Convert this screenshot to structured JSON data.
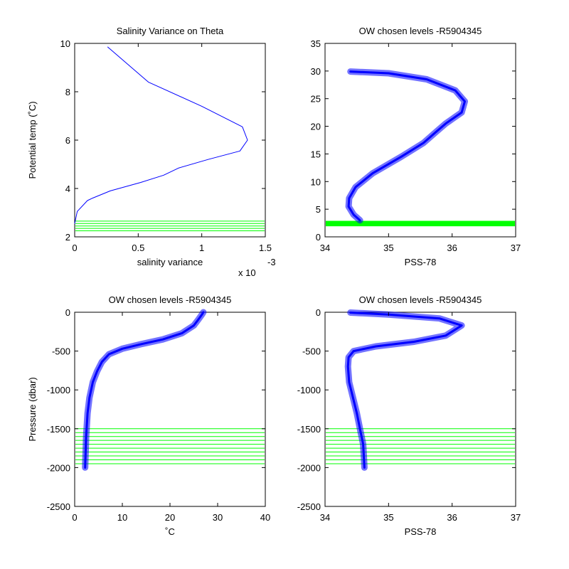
{
  "chart_data": [
    {
      "type": "line",
      "title": "Salinity Variance on Theta",
      "xlabel": "salinity variance",
      "ylabel": "Potential temp (˚C)",
      "xlim": [
        0,
        1.5
      ],
      "ylim": [
        2,
        10
      ],
      "x_ticks": [
        0,
        0.5,
        1,
        1.5
      ],
      "x_tick_labels": [
        "0",
        "0.5",
        "1",
        "1.5"
      ],
      "y_ticks": [
        2,
        4,
        6,
        8,
        10
      ],
      "y_tick_labels": [
        "2",
        "4",
        "6",
        "8",
        "10"
      ],
      "x_exponent_text": "x 10",
      "x_exponent_power": "-3",
      "grid": false,
      "series": [
        {
          "color": "#0000ff",
          "x": [
            0.0,
            0.02,
            0.1,
            0.14,
            0.28,
            0.52,
            0.7,
            0.82,
            1.05,
            1.3,
            1.36,
            1.32,
            1.0,
            0.58,
            0.26
          ],
          "y": [
            2.55,
            3.05,
            3.5,
            3.6,
            3.9,
            4.25,
            4.55,
            4.85,
            5.2,
            5.55,
            6.0,
            6.55,
            7.4,
            8.4,
            9.85
          ]
        }
      ],
      "hlines": {
        "color": "#00ff00",
        "values": [
          2.25,
          2.35,
          2.45,
          2.55,
          2.65
        ]
      }
    },
    {
      "type": "line",
      "title": "OW chosen levels -R5904345",
      "xlabel": "PSS-78",
      "ylabel": "",
      "xlim": [
        34,
        37
      ],
      "ylim": [
        0,
        35
      ],
      "x_ticks": [
        34,
        35,
        36,
        37
      ],
      "x_tick_labels": [
        "34",
        "35",
        "36",
        "37"
      ],
      "y_ticks": [
        0,
        5,
        10,
        15,
        20,
        25,
        30,
        35
      ],
      "y_tick_labels": [
        "0",
        "5",
        "10",
        "15",
        "20",
        "25",
        "30",
        "35"
      ],
      "grid": false,
      "series": [
        {
          "color": "#0000ff",
          "x": [
            34.55,
            34.45,
            34.37,
            34.38,
            34.48,
            34.75,
            35.2,
            35.55,
            35.75,
            35.9,
            36.15,
            36.2,
            36.05,
            35.6,
            35.0,
            34.4
          ],
          "y": [
            3.0,
            4.0,
            5.5,
            7.0,
            9.0,
            11.5,
            14.5,
            17.0,
            19.0,
            20.5,
            22.5,
            24.5,
            26.5,
            28.5,
            29.6,
            29.9
          ]
        }
      ],
      "hlines": {
        "color": "#00ff00",
        "values": [
          2.1,
          2.3,
          2.5,
          2.7
        ]
      }
    },
    {
      "type": "line",
      "title": "OW chosen levels -R5904345",
      "xlabel": "˚C",
      "ylabel": "Pressure (dbar)",
      "xlim": [
        0,
        40
      ],
      "ylim": [
        -2500,
        0
      ],
      "x_ticks": [
        0,
        10,
        20,
        30,
        40
      ],
      "x_tick_labels": [
        "0",
        "10",
        "20",
        "30",
        "40"
      ],
      "y_ticks": [
        -2500,
        -2000,
        -1500,
        -1000,
        -500,
        0
      ],
      "y_tick_labels": [
        "-2500",
        "-2000",
        "-1500",
        "-1000",
        "-500",
        "0"
      ],
      "grid": false,
      "series": [
        {
          "color": "#0000ff",
          "x": [
            2.2,
            2.4,
            2.7,
            3.1,
            3.8,
            4.7,
            5.7,
            7.2,
            10.0,
            14.0,
            18.5,
            22.5,
            25.0,
            26.0,
            26.7,
            27.0
          ],
          "y": [
            -2000,
            -1600,
            -1300,
            -1100,
            -900,
            -760,
            -640,
            -540,
            -470,
            -410,
            -350,
            -270,
            -170,
            -90,
            -30,
            0
          ]
        }
      ],
      "hlines": {
        "color": "#00ff00",
        "values": [
          -1500,
          -1550,
          -1600,
          -1650,
          -1700,
          -1750,
          -1800,
          -1850,
          -1900,
          -1950
        ]
      }
    },
    {
      "type": "line",
      "title": "OW chosen levels -R5904345",
      "xlabel": "PSS-78",
      "ylabel": "",
      "xlim": [
        34,
        37
      ],
      "ylim": [
        -2500,
        0
      ],
      "x_ticks": [
        34,
        35,
        36,
        37
      ],
      "x_tick_labels": [
        "34",
        "35",
        "36",
        "37"
      ],
      "y_ticks": [
        -2500,
        -2000,
        -1500,
        -1000,
        -500,
        0
      ],
      "y_tick_labels": [
        "-2500",
        "-2000",
        "-1500",
        "-1000",
        "-500",
        "0"
      ],
      "grid": false,
      "series": [
        {
          "color": "#0000ff",
          "x": [
            34.62,
            34.6,
            34.55,
            34.5,
            34.44,
            34.38,
            34.36,
            34.37,
            34.45,
            34.8,
            35.4,
            35.9,
            36.15,
            35.8,
            35.0,
            34.4
          ],
          "y": [
            -2000,
            -1700,
            -1500,
            -1300,
            -1100,
            -900,
            -700,
            -580,
            -500,
            -440,
            -380,
            -300,
            -170,
            -80,
            -30,
            -5
          ]
        }
      ],
      "hlines": {
        "color": "#00ff00",
        "values": [
          -1500,
          -1550,
          -1600,
          -1650,
          -1700,
          -1750,
          -1800,
          -1850,
          -1900,
          -1950
        ]
      }
    }
  ]
}
